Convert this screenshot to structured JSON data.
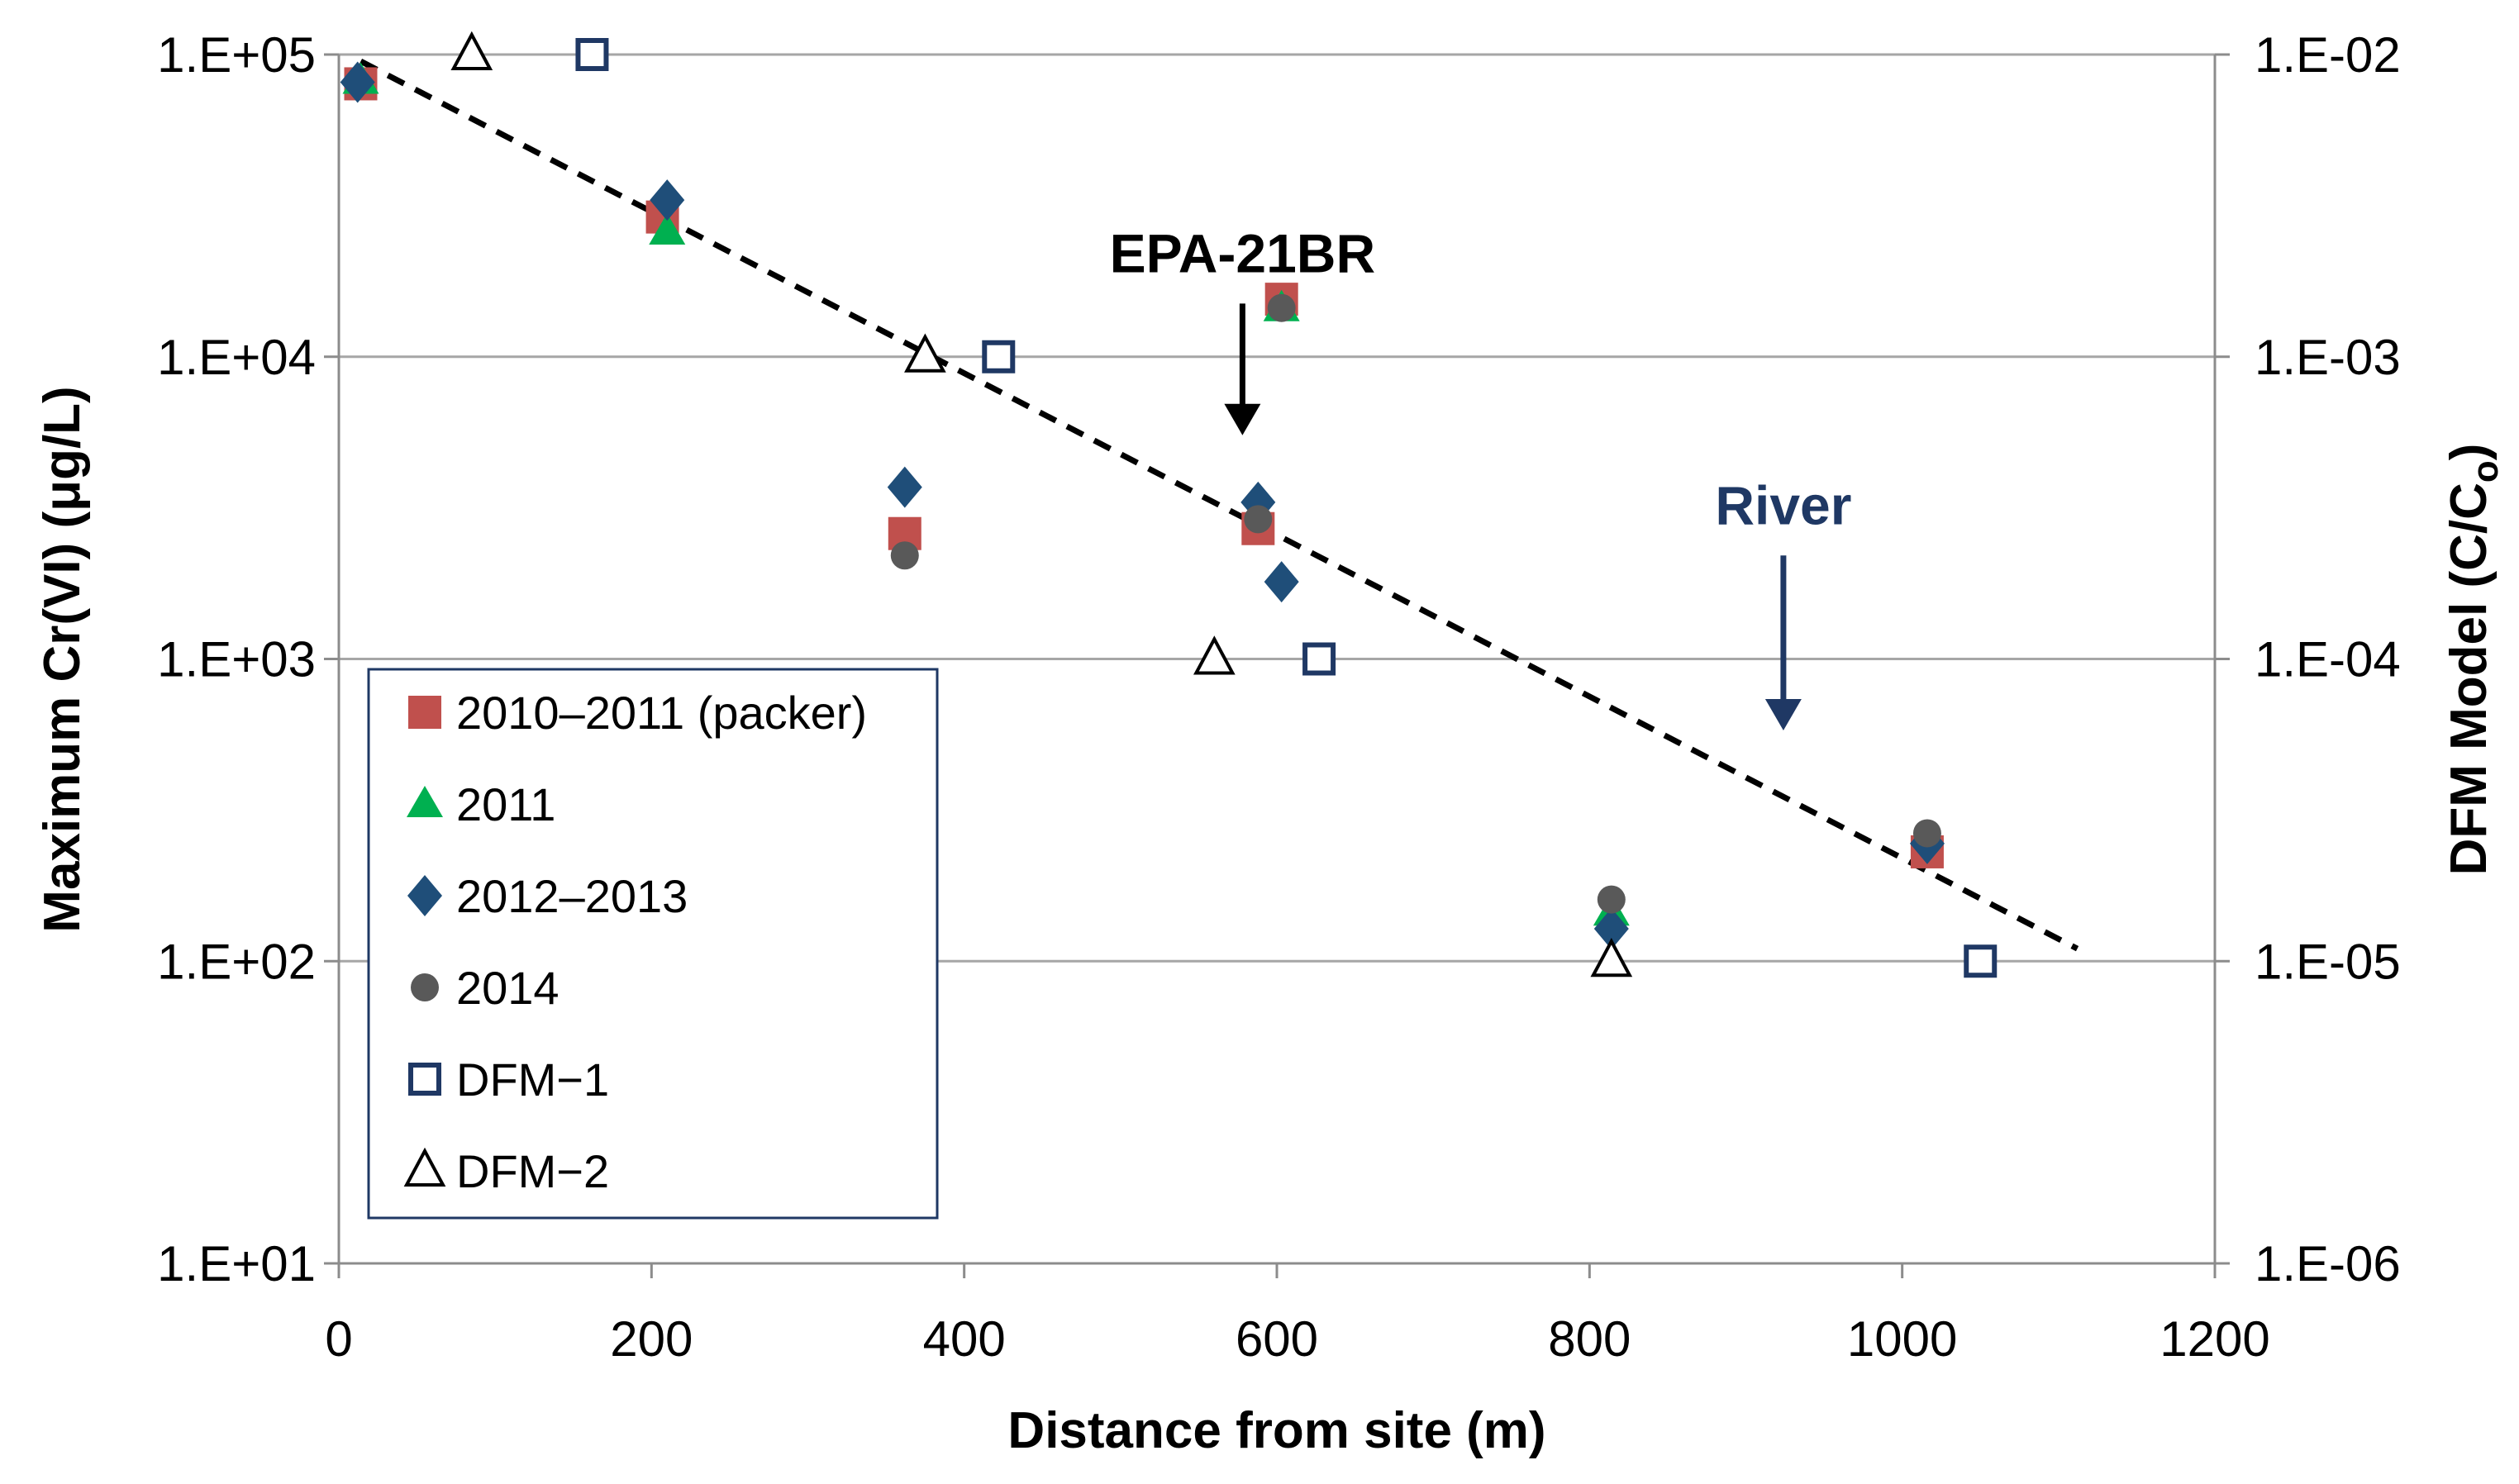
{
  "chart_data": {
    "type": "scatter",
    "title": "",
    "xlabel": "Distance from site (m)",
    "ylabel": "Maximum Cr(VI) (μg/L)",
    "y2label_main": "DFM Model (C/C",
    "y2label_sub": "o",
    "y2label_close": ")",
    "xlim": [
      0,
      1200
    ],
    "ylim": [
      10,
      100000
    ],
    "y2lim": [
      1e-06,
      0.01
    ],
    "x_ticks": [
      0,
      200,
      400,
      600,
      800,
      1000,
      1200
    ],
    "x_tick_labels": [
      "0",
      "200",
      "400",
      "600",
      "800",
      "1000",
      "1200"
    ],
    "y_tick_labels": [
      "1.E+05",
      "1.E+04",
      "1.E+03",
      "1.E+02",
      "1.E+01"
    ],
    "y_tick_values": [
      100000,
      10000,
      1000,
      100,
      10
    ],
    "y2_tick_labels": [
      "1.E-02",
      "1.E-03",
      "1.E-04",
      "1.E-05",
      "1.E-06"
    ],
    "grid": true,
    "legend_position": "bottom-left",
    "series": [
      {
        "name": "2010–2011 (packer)",
        "marker": "square",
        "color": "#C0504D",
        "x": [
          14,
          207,
          362,
          588,
          603,
          1016
        ],
        "y": [
          80000,
          29000,
          2600,
          2700,
          15500,
          230
        ]
      },
      {
        "name": "2011",
        "marker": "triangle",
        "color": "#00B050",
        "x": [
          14,
          210,
          603,
          814
        ],
        "y": [
          82000,
          26000,
          14500,
          145
        ]
      },
      {
        "name": "2012–2013",
        "marker": "diamond",
        "color": "#1F4E79",
        "x": [
          12,
          210,
          362,
          588,
          603,
          814,
          1016
        ],
        "y": [
          81000,
          33000,
          3700,
          3300,
          1800,
          128,
          245
        ]
      },
      {
        "name": "2014",
        "marker": "circle",
        "color": "#595959",
        "x": [
          362,
          588,
          603,
          814,
          1016
        ],
        "y": [
          2200,
          2900,
          14500,
          160,
          265
        ]
      },
      {
        "name": "DFM−1",
        "marker": "open-square",
        "color": "#1F3864",
        "x": [
          162,
          422,
          627,
          1050
        ],
        "y": [
          100000,
          10000,
          1000,
          100
        ]
      },
      {
        "name": "DFM−2",
        "marker": "open-triangle",
        "color": "#000000",
        "x": [
          85,
          375,
          560,
          814
        ],
        "y": [
          100000,
          10000,
          1000,
          100
        ]
      }
    ],
    "trendline": {
      "style": "dashed",
      "color": "#000000",
      "x": [
        14,
        1112
      ],
      "y": [
        95000,
        110
      ]
    },
    "annotations": [
      {
        "text": "EPA-21BR",
        "color": "#000000",
        "arrow_x": 578,
        "arrow_from_y": 15000,
        "arrow_to_y": 5500
      },
      {
        "text": "River",
        "color": "#1F3864",
        "arrow_x": 924,
        "arrow_from_y": 2200,
        "arrow_to_y": 580
      }
    ]
  }
}
